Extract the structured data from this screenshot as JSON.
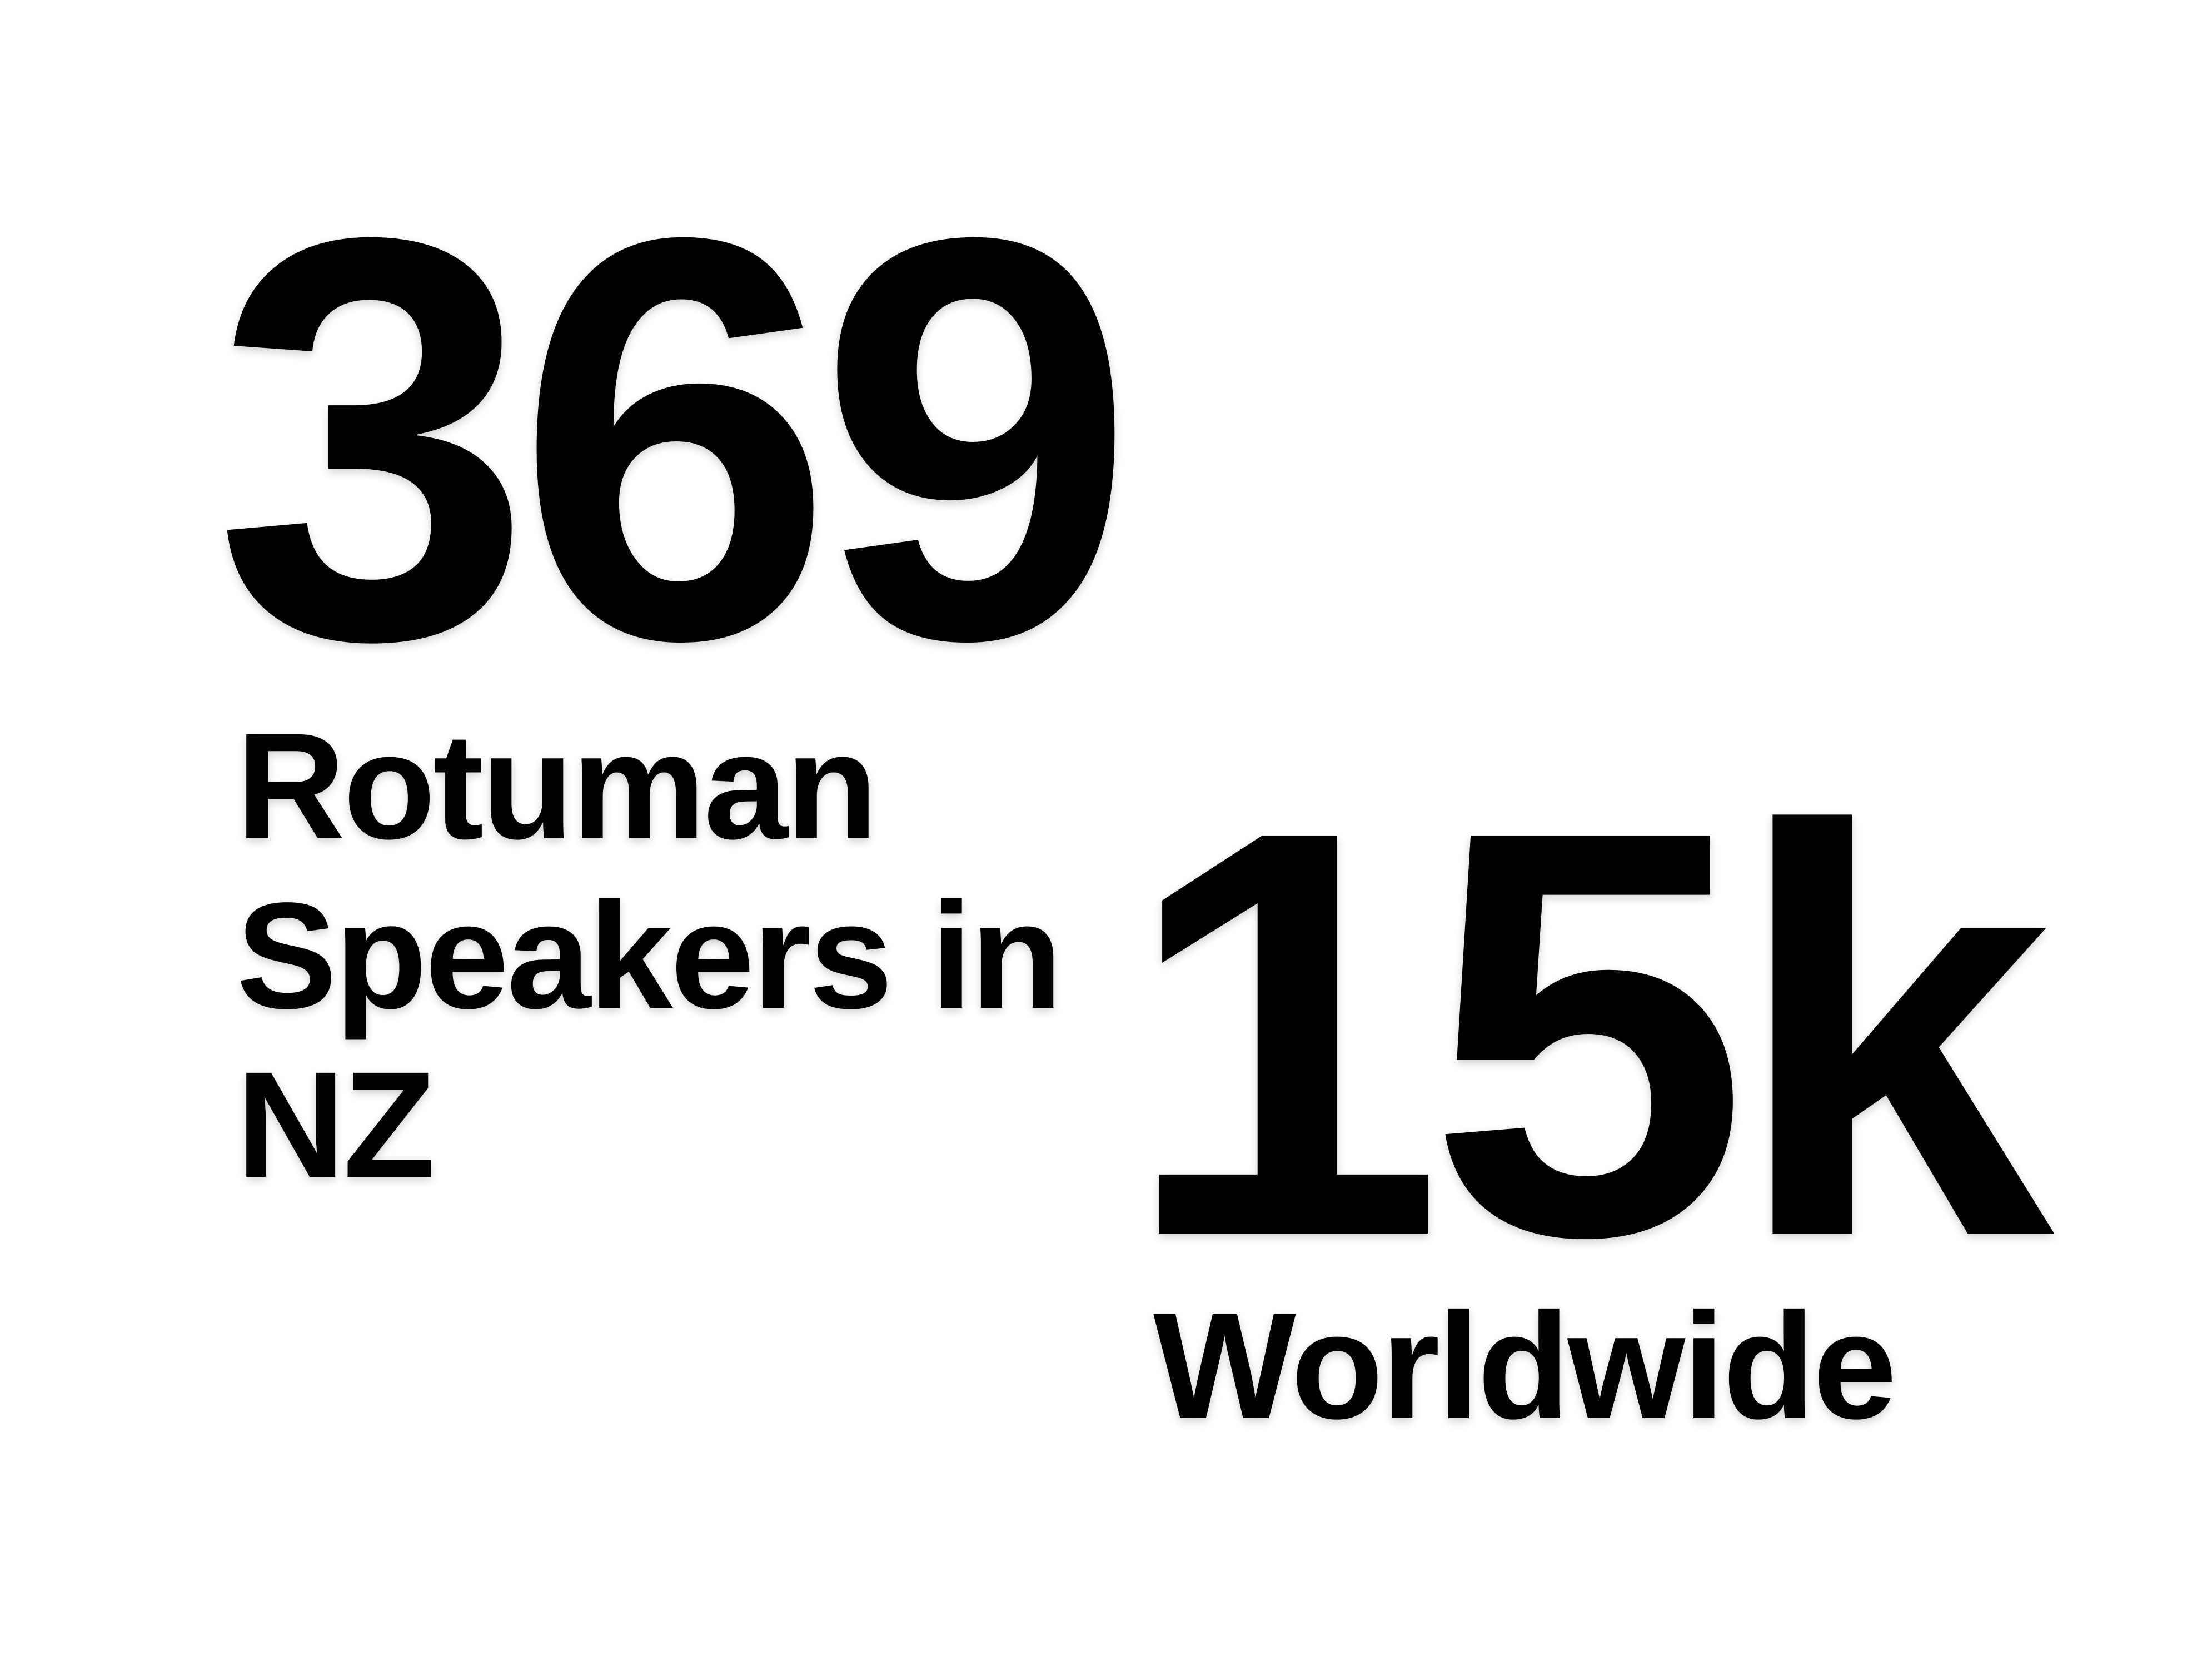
{
  "nz": {
    "number": "369",
    "label_lines": [
      "Rotuman",
      "Speakers in",
      "NZ"
    ]
  },
  "worldwide": {
    "number": "15k",
    "label": "Worldwide"
  },
  "colors": {
    "background": "#ffffff",
    "text": "#000000"
  }
}
